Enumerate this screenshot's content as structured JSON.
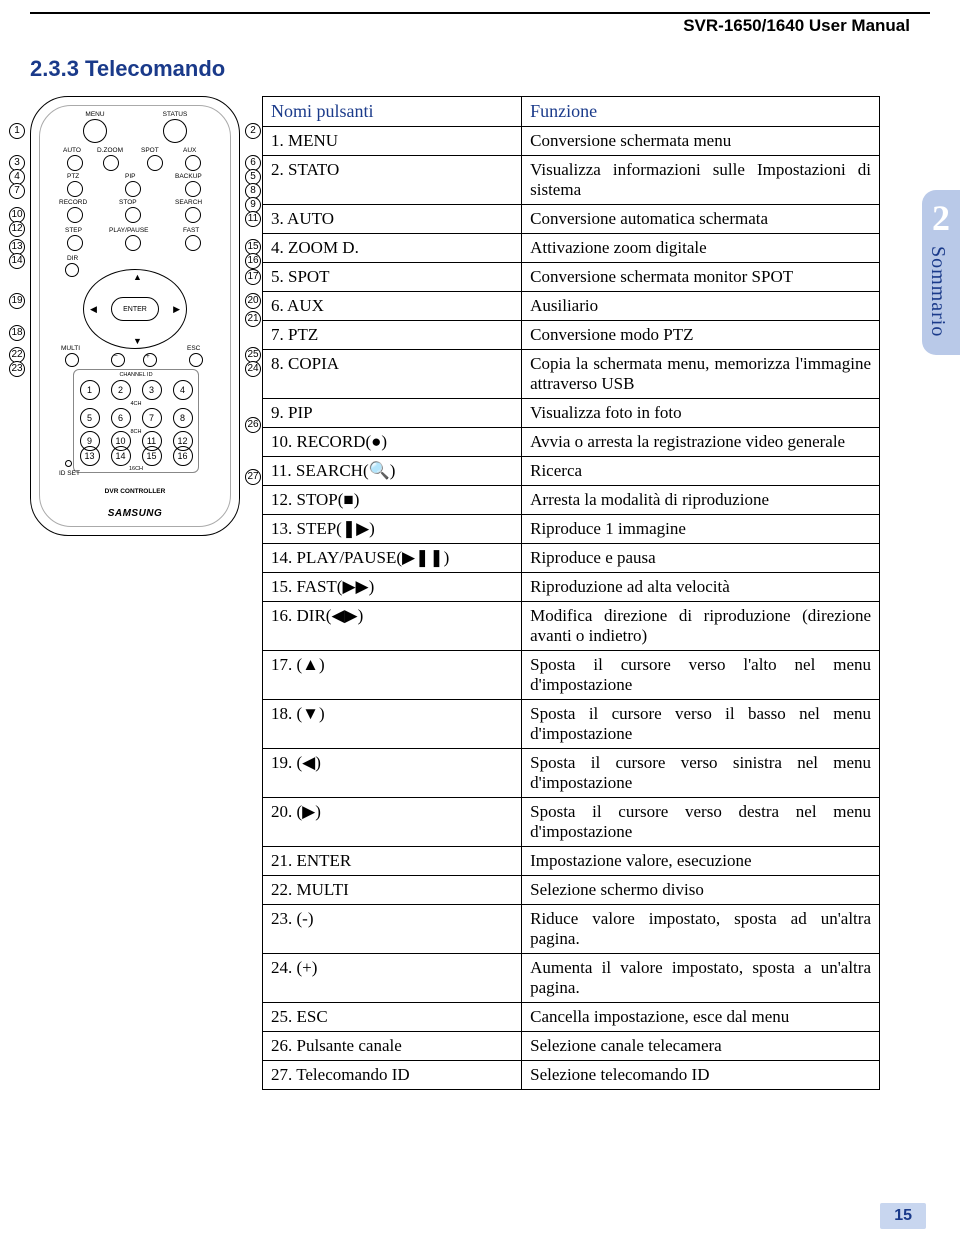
{
  "header": {
    "manual_title": "SVR-1650/1640 User Manual"
  },
  "section": {
    "title": "2.3.3 Telecomando"
  },
  "sidebar": {
    "chapter_number": "2",
    "chapter_label": "Sommario"
  },
  "page_number": "15",
  "remote": {
    "brand": "SAMSUNG",
    "controller_label": "DVR CONTROLLER",
    "idset_label": "ID SET",
    "channel_id_label": "CHANNEL ID",
    "labels_4ch": "4CH",
    "labels_8ch": "8CH",
    "labels_16ch": "16CH",
    "enter": "ENTER",
    "top_labels": {
      "menu": "MENU",
      "status": "STATUS",
      "auto": "AUTO",
      "dzoom": "D.ZOOM",
      "spot": "SPOT",
      "aux": "AUX",
      "ptz": "PTZ",
      "pip": "PIP",
      "backup": "BACKUP",
      "record": "RECORD",
      "stop": "STOP",
      "search": "SEARCH",
      "step": "STEP",
      "playpause": "PLAY/PAUSE",
      "fast": "FAST",
      "dir": "DIR",
      "multi": "MULTI",
      "esc": "ESC"
    }
  },
  "table": {
    "header_name": "Nomi pulsanti",
    "header_func": "Funzione",
    "rows": [
      {
        "name": "1. MENU",
        "func": "Conversione schermata menu"
      },
      {
        "name": "2. STATO",
        "func": "Visualizza informazioni sulle Impostazioni di sistema"
      },
      {
        "name": "3. AUTO",
        "func": "Conversione automatica schermata"
      },
      {
        "name": "4. ZOOM D.",
        "func": "Attivazione zoom digitale"
      },
      {
        "name": "5. SPOT",
        "func": "Conversione schermata monitor SPOT"
      },
      {
        "name": "6. AUX",
        "func": "Ausiliario"
      },
      {
        "name": "7. PTZ",
        "func": "Conversione modo PTZ"
      },
      {
        "name": "8. COPIA",
        "func": "Copia la schermata menu, memorizza l'immagine attraverso USB"
      },
      {
        "name": "9. PIP",
        "func": "Visualizza foto in foto"
      },
      {
        "name": "10. RECORD(●)",
        "func": "Avvia o arresta la registrazione video generale"
      },
      {
        "name": "11. SEARCH(🔍)",
        "func": "Ricerca"
      },
      {
        "name": "12. STOP(■)",
        "func": "Arresta la modalità di riproduzione"
      },
      {
        "name": "13. STEP(❚▶)",
        "func": "Riproduce 1 immagine"
      },
      {
        "name": "14. PLAY/PAUSE(▶❚❚)",
        "func": "Riproduce e pausa"
      },
      {
        "name": "15. FAST(▶▶)",
        "func": "Riproduzione ad alta velocità"
      },
      {
        "name": "16. DIR(◀▶)",
        "func": "Modifica direzione di riproduzione (direzione avanti o indietro)"
      },
      {
        "name": "17. (▲)",
        "func": "Sposta il cursore verso l'alto nel menu d'impostazione"
      },
      {
        "name": "18. (▼)",
        "func": "Sposta il cursore verso il basso nel menu d'impostazione"
      },
      {
        "name": "19. (◀)",
        "func": "Sposta il cursore verso sinistra nel menu d'impostazione"
      },
      {
        "name": "20. (▶)",
        "func": "Sposta il cursore verso destra nel menu d'impostazione"
      },
      {
        "name": "21. ENTER",
        "func": "Impostazione valore, esecuzione"
      },
      {
        "name": "22. MULTI",
        "func": "Selezione schermo diviso"
      },
      {
        "name": "23. (-)",
        "func": "Riduce valore impostato, sposta ad un'altra pagina."
      },
      {
        "name": "24. (+)",
        "func": "Aumenta il valore impostato, sposta a un'altra pagina."
      },
      {
        "name": "25. ESC",
        "func": "Cancella impostazione, esce dal menu"
      },
      {
        "name": "26. Pulsante canale",
        "func": "Selezione canale telecamera"
      },
      {
        "name": "27. Telecomando ID",
        "func": "Selezione telecomando ID"
      }
    ]
  },
  "colors": {
    "heading_blue": "#1a3a8a",
    "tab_bg": "#b9c9e8",
    "pagenum_bg": "#c8d6ef"
  }
}
